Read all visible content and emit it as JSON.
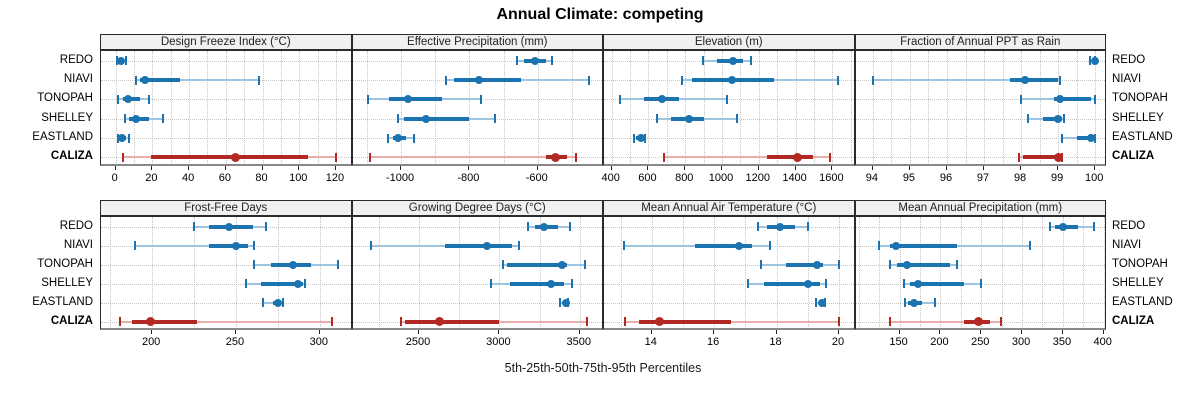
{
  "title": "Annual Climate: competing",
  "caption": "5th-25th-50th-75th-95th Percentiles",
  "sites": [
    "REDO",
    "NIAVI",
    "TONOPAH",
    "SHELLEY",
    "EASTLAND",
    "CALIZA"
  ],
  "highlight_site": "CALIZA",
  "colors": {
    "series_main": "#1b74b0",
    "series_light": "#9dc5e1",
    "highlight_main": "#b22823",
    "highlight_light": "#e9aeaa",
    "strip_bg": "#f0f0f0",
    "panel_border": "#2b2b2b",
    "axis_base": "#888888",
    "grid": "#c6c6c6"
  },
  "chart_data": {
    "type": "dotplot-percentiles",
    "percentiles": [
      5,
      25,
      50,
      75,
      95
    ],
    "legend_note": "5th-25th-50th-75th-95th Percentiles",
    "grid": "dotted minor+major vertical, dotted row leaders",
    "panels": [
      {
        "row": 0,
        "col": 0,
        "title": "Design Freeze Index (°C)",
        "xlim": [
          -8,
          129
        ],
        "ticks": [
          0,
          20,
          40,
          60,
          80,
          100,
          120
        ],
        "tick_labels": [
          "0",
          "20",
          "40",
          "60",
          "80",
          "100",
          "120"
        ],
        "minor_step": 10,
        "series": {
          "REDO": [
            0.5,
            1.5,
            3,
            4.5,
            5.5
          ],
          "NIAVI": [
            11,
            13,
            16,
            35,
            78
          ],
          "TONOPAH": [
            1,
            4,
            6.5,
            13,
            18
          ],
          "SHELLEY": [
            5,
            7.5,
            11,
            18,
            26
          ],
          "EASTLAND": [
            1,
            2,
            3.5,
            5.5,
            7
          ],
          "CALIZA": [
            4,
            19,
            65,
            105,
            120
          ]
        }
      },
      {
        "row": 0,
        "col": 1,
        "title": "Effective Precipitation (mm)",
        "xlim": [
          -1142,
          -406
        ],
        "ticks": [
          -1000,
          -800,
          -600
        ],
        "tick_labels": [
          "-1000",
          "-800",
          "-600"
        ],
        "minor_step": 100,
        "series": {
          "REDO": [
            -660,
            -640,
            -607,
            -575,
            -558
          ],
          "NIAVI": [
            -868,
            -845,
            -771,
            -650,
            -449
          ],
          "TONOPAH": [
            -1097,
            -1035,
            -980,
            -880,
            -765
          ],
          "SHELLEY": [
            -1010,
            -990,
            -927,
            -800,
            -725
          ],
          "EASTLAND": [
            -1038,
            -1023,
            -1008,
            -985,
            -962
          ],
          "CALIZA": [
            -1090,
            -575,
            -549,
            -515,
            -488
          ]
        }
      },
      {
        "row": 0,
        "col": 2,
        "title": "Elevation (m)",
        "xlim": [
          358,
          1726
        ],
        "ticks": [
          400,
          600,
          800,
          1000,
          1200,
          1400,
          1600
        ],
        "tick_labels": [
          "400",
          "600",
          "800",
          "1000",
          "1200",
          "1400",
          "1600"
        ],
        "minor_step": 100,
        "series": {
          "REDO": [
            894,
            970,
            1060,
            1112,
            1160
          ],
          "NIAVI": [
            784,
            838,
            1052,
            1284,
            1632
          ],
          "TONOPAH": [
            445,
            573,
            671,
            766,
            1025
          ],
          "SHELLEY": [
            645,
            721,
            818,
            904,
            1079
          ],
          "EASTLAND": [
            520,
            532,
            559,
            570,
            582
          ],
          "CALIZA": [
            686,
            1243,
            1413,
            1493,
            1587
          ]
        }
      },
      {
        "row": 0,
        "col": 3,
        "title": "Fraction of Annual PPT as Rain",
        "xlim": [
          93.53,
          100.32
        ],
        "ticks": [
          94,
          95,
          96,
          97,
          98,
          99,
          100
        ],
        "tick_labels": [
          "94",
          "95",
          "96",
          "97",
          "98",
          "99",
          "100"
        ],
        "minor_step": 0.5,
        "series": {
          "REDO": [
            99.85,
            99.95,
            100,
            100,
            100
          ],
          "NIAVI": [
            94,
            97.7,
            98.1,
            99,
            99.05
          ],
          "TONOPAH": [
            98,
            98.9,
            99.05,
            99.9,
            100
          ],
          "SHELLEY": [
            98.2,
            98.6,
            99,
            99.1,
            99.15
          ],
          "EASTLAND": [
            99.1,
            99.5,
            99.9,
            100,
            100
          ],
          "CALIZA": [
            97.95,
            98.05,
            99,
            99.02,
            99.1
          ]
        }
      },
      {
        "row": 1,
        "col": 0,
        "title": "Frost-Free Days",
        "xlim": [
          169.5,
          319.5
        ],
        "ticks": [
          200,
          250,
          300
        ],
        "tick_labels": [
          "200",
          "250",
          "300"
        ],
        "minor_step": 25,
        "series": {
          "REDO": [
            225,
            234,
            246,
            260,
            268
          ],
          "NIAVI": [
            190,
            234,
            250,
            257,
            261
          ],
          "TONOPAH": [
            261,
            271,
            284,
            295,
            311
          ],
          "SHELLEY": [
            256,
            265,
            287,
            290,
            291
          ],
          "EASTLAND": [
            266,
            272,
            275,
            277,
            278
          ],
          "CALIZA": [
            181,
            188,
            199,
            227,
            307
          ]
        }
      },
      {
        "row": 1,
        "col": 1,
        "title": "Growing Degree Days (°C)",
        "xlim": [
          2086,
          3651
        ],
        "ticks": [
          2500,
          3000,
          3500
        ],
        "tick_labels": [
          "2500",
          "3000",
          "3500"
        ],
        "minor_step": 250,
        "series": {
          "REDO": [
            3180,
            3220,
            3280,
            3365,
            3440
          ],
          "NIAVI": [
            2200,
            2660,
            2920,
            3080,
            3125
          ],
          "TONOPAH": [
            3020,
            3050,
            3390,
            3420,
            3530
          ],
          "SHELLEY": [
            2950,
            3065,
            3320,
            3400,
            3450
          ],
          "EASTLAND": [
            3380,
            3400,
            3415,
            3425,
            3430
          ],
          "CALIZA": [
            2390,
            2410,
            2625,
            2995,
            3545
          ]
        }
      },
      {
        "row": 1,
        "col": 2,
        "title": "Mean Annual Air Temperature (°C)",
        "xlim": [
          12.47,
          20.53
        ],
        "ticks": [
          14,
          16,
          18,
          20
        ],
        "tick_labels": [
          "14",
          "16",
          "18",
          "20"
        ],
        "minor_step": 1,
        "series": {
          "REDO": [
            17.4,
            17.7,
            18.1,
            18.6,
            19.0
          ],
          "NIAVI": [
            13.1,
            15.4,
            16.8,
            17.2,
            17.8
          ],
          "TONOPAH": [
            17.5,
            18.3,
            19.3,
            19.5,
            20.0
          ],
          "SHELLEY": [
            17.1,
            17.6,
            19.0,
            19.4,
            19.6
          ],
          "EASTLAND": [
            19.25,
            19.35,
            19.45,
            19.5,
            19.55
          ],
          "CALIZA": [
            13.15,
            13.6,
            14.25,
            16.55,
            20.0
          ]
        }
      },
      {
        "row": 1,
        "col": 3,
        "title": "Mean Annual Precipitation (mm)",
        "xlim": [
          96,
          404
        ],
        "ticks": [
          150,
          200,
          250,
          300,
          350,
          400
        ],
        "tick_labels": [
          "150",
          "200",
          "250",
          "300",
          "350",
          "400"
        ],
        "minor_step": 25,
        "series": {
          "REDO": [
            334,
            340,
            350,
            368,
            388
          ],
          "NIAVI": [
            125,
            138,
            145,
            220,
            310
          ],
          "TONOPAH": [
            138,
            147,
            159,
            212,
            220
          ],
          "SHELLEY": [
            156,
            163,
            172,
            229,
            250
          ],
          "EASTLAND": [
            157,
            160,
            168,
            178,
            193
          ],
          "CALIZA": [
            138,
            229,
            247,
            261,
            274
          ]
        }
      }
    ]
  }
}
